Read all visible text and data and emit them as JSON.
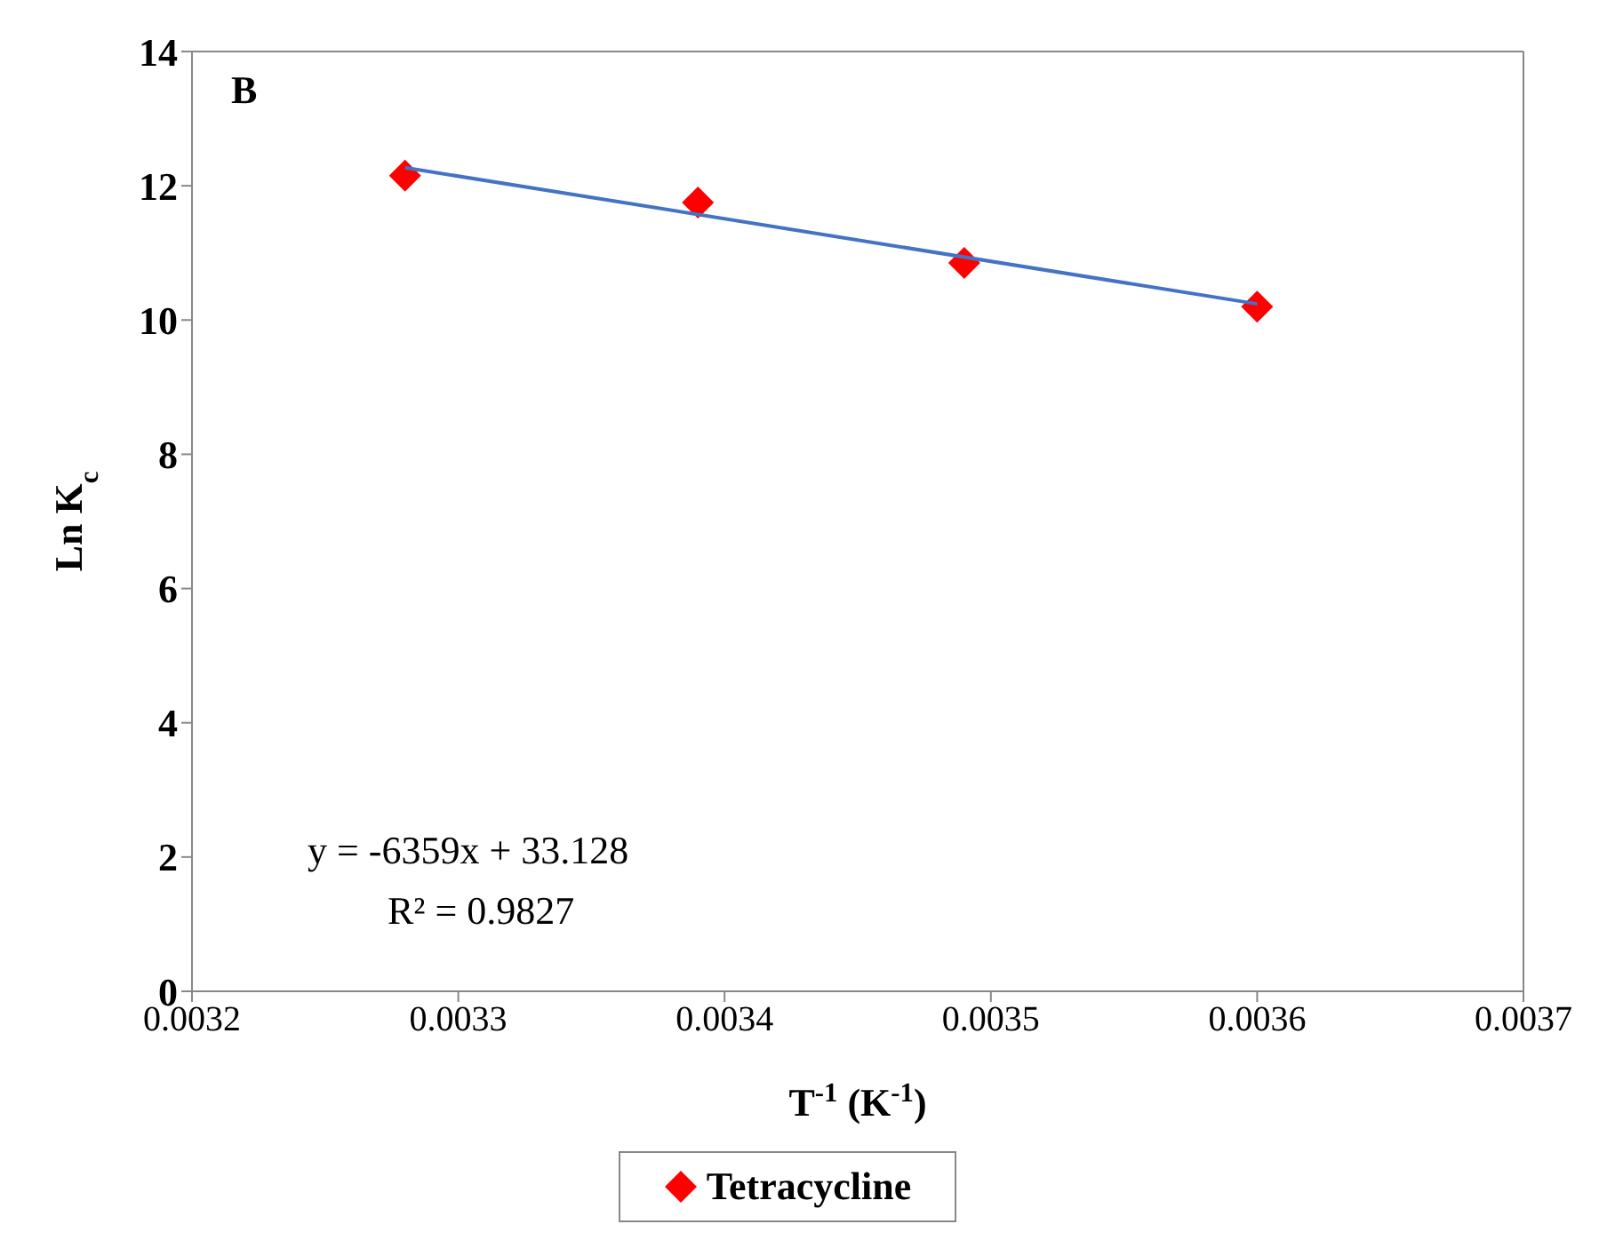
{
  "chart_data": {
    "type": "scatter",
    "xlabel": "T$^{-1}$ (K$^{-1}$)",
    "ylabel": "Ln K$_{c}$",
    "series": [
      {
        "name": "Tetracycline",
        "color": "#ff0000",
        "marker": "diamond",
        "x": [
          0.00328,
          0.00339,
          0.00349,
          0.0036
        ],
        "values": [
          12.15,
          11.75,
          10.85,
          10.2
        ]
      },
      {
        "type": "line",
        "color": "#4472c4",
        "marker": "none",
        "x": [
          0.00328,
          0.0036
        ],
        "values": [
          12.27,
          10.24
        ]
      }
    ],
    "xlim": [
      0.0032,
      0.0037
    ],
    "xticks": [
      0.0032,
      0.0033,
      0.0034,
      0.0035,
      0.0036,
      0.0037
    ],
    "ylim": [
      0,
      14
    ],
    "yticks": [
      0,
      2,
      4,
      6,
      8,
      10,
      12,
      14
    ],
    "annotations": [
      "B",
      "y = -6359x + 33.128",
      "R² = 0.9827"
    ],
    "legend": "bottom",
    "grid": false
  }
}
